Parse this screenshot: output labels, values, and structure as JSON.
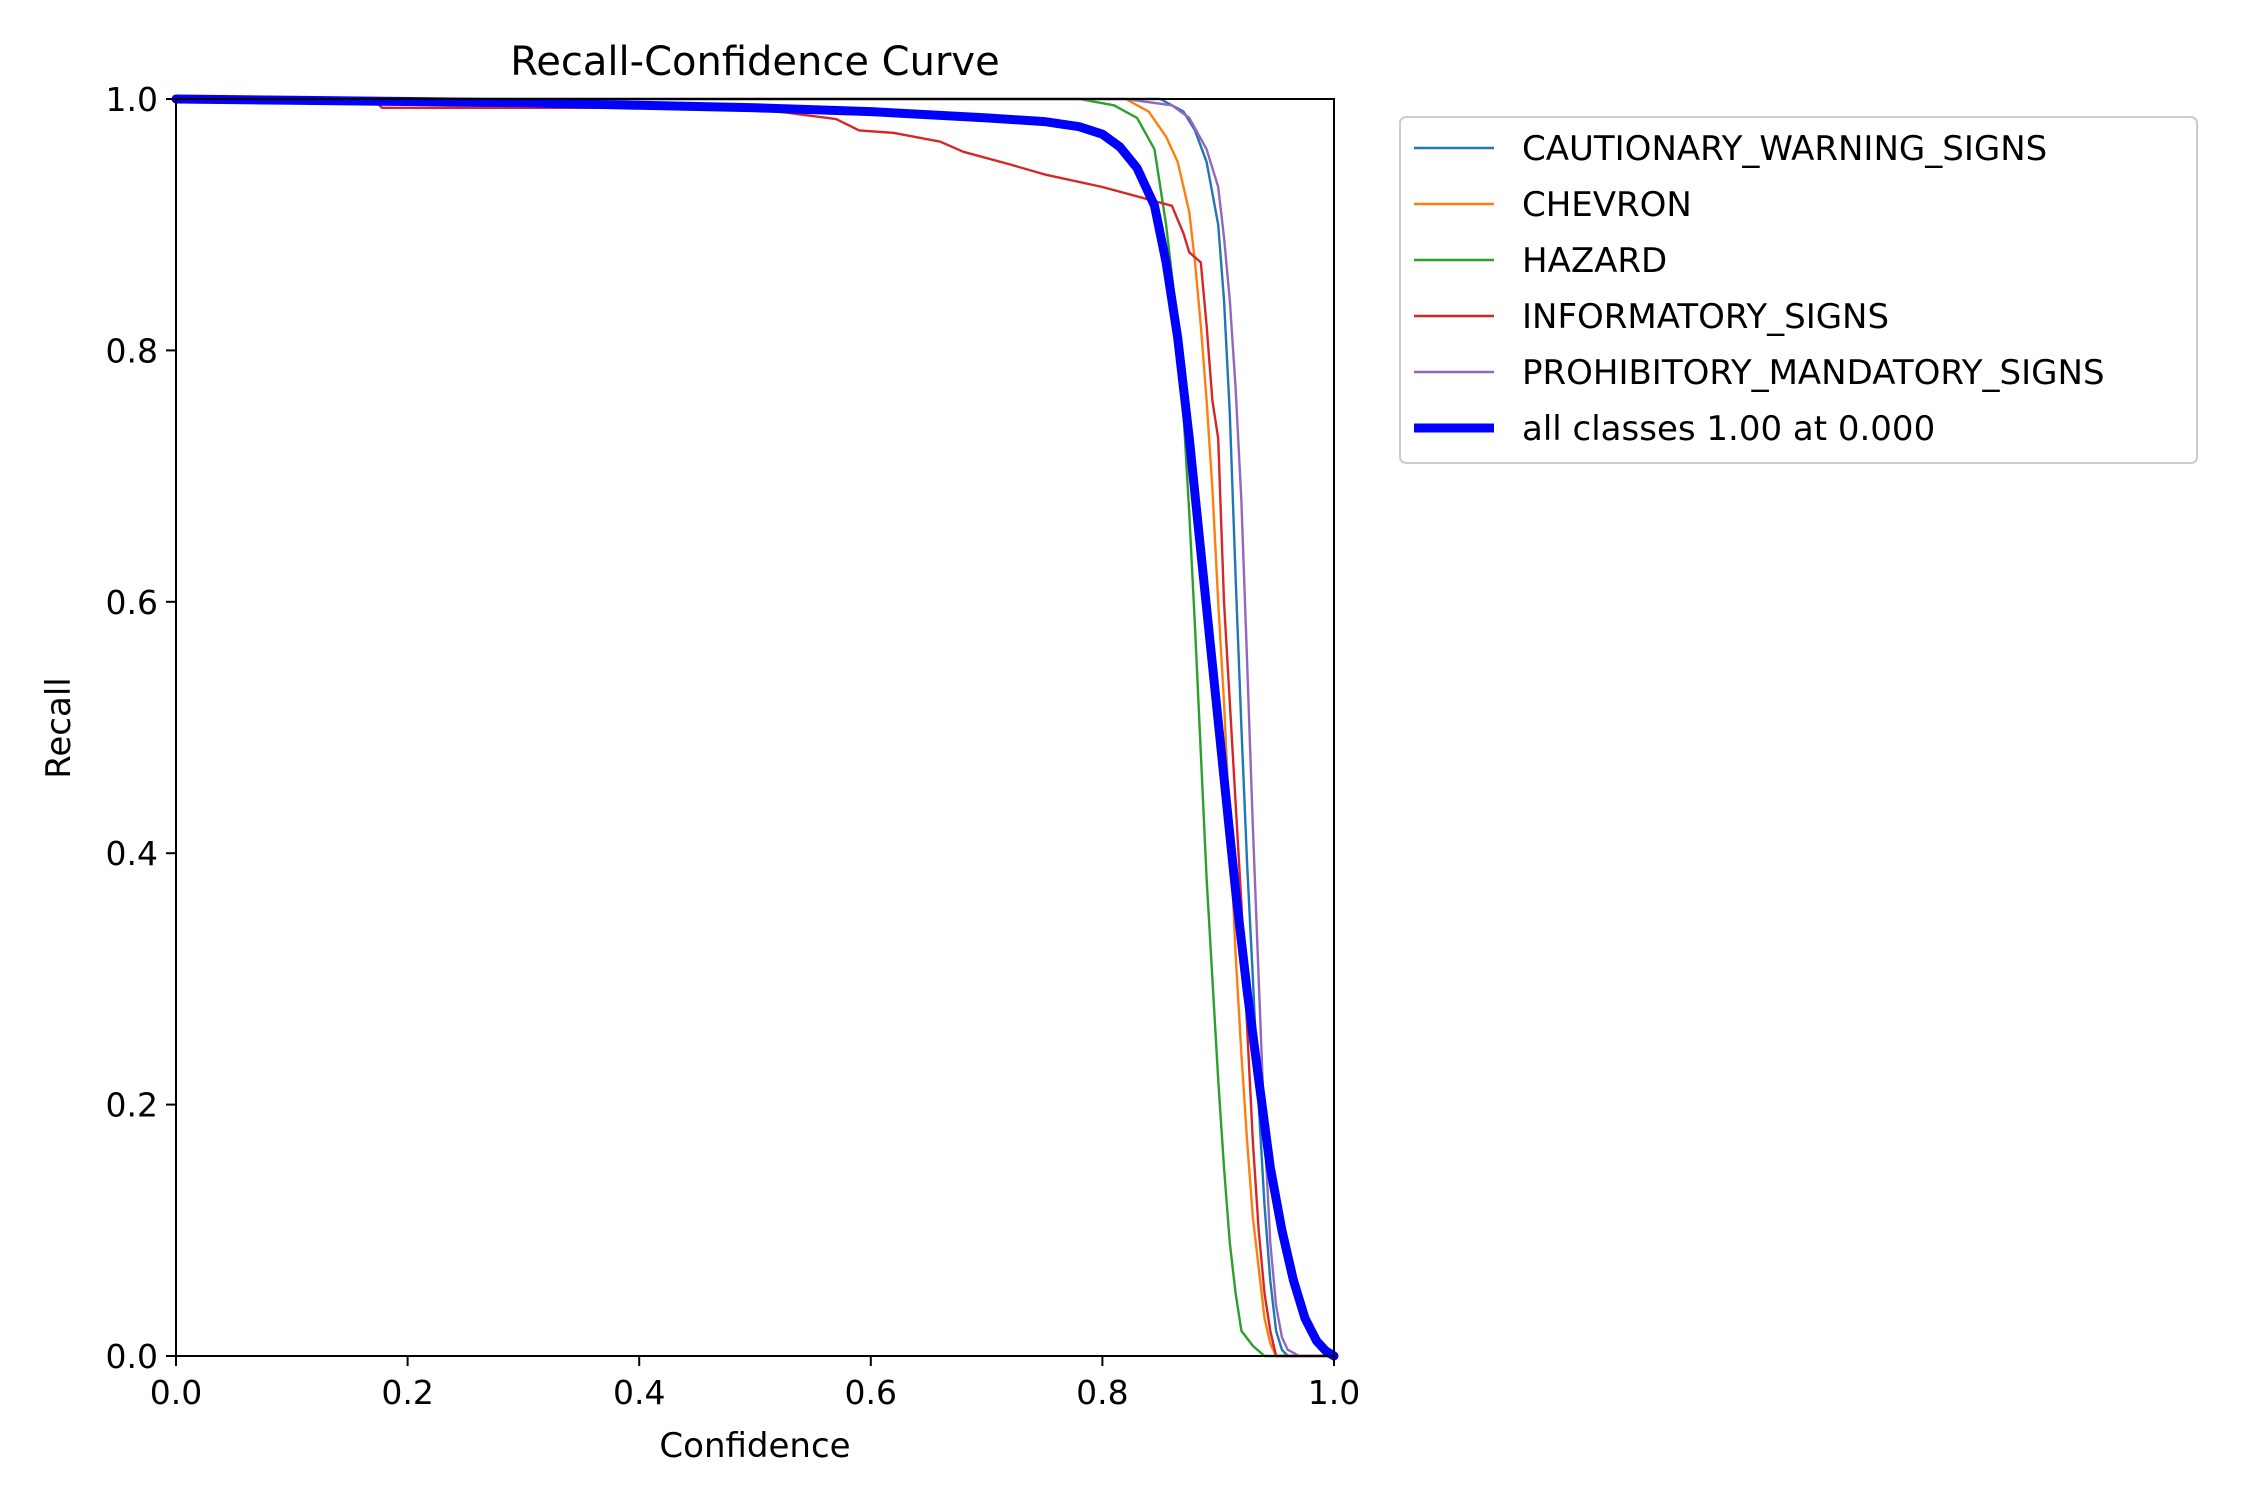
{
  "chart_data": {
    "type": "line",
    "title": "Recall-Confidence Curve",
    "xlabel": "Confidence",
    "ylabel": "Recall",
    "xlim": [
      0.0,
      1.0
    ],
    "ylim": [
      0.0,
      1.0
    ],
    "xticks": [
      "0.0",
      "0.2",
      "0.4",
      "0.6",
      "0.8",
      "1.0"
    ],
    "yticks": [
      "0.0",
      "0.2",
      "0.4",
      "0.6",
      "0.8",
      "1.0"
    ],
    "grid": false,
    "legend_position": "outside-right",
    "series": [
      {
        "name": "CAUTIONARY_WARNING_SIGNS",
        "color": "#1f77b4",
        "emphasis": false,
        "points": [
          [
            0.0,
            1.0
          ],
          [
            0.8,
            1.0
          ],
          [
            0.85,
            1.0
          ],
          [
            0.87,
            0.99
          ],
          [
            0.88,
            0.975
          ],
          [
            0.89,
            0.95
          ],
          [
            0.9,
            0.9
          ],
          [
            0.905,
            0.84
          ],
          [
            0.91,
            0.75
          ],
          [
            0.915,
            0.62
          ],
          [
            0.92,
            0.5
          ],
          [
            0.925,
            0.39
          ],
          [
            0.93,
            0.3
          ],
          [
            0.935,
            0.2
          ],
          [
            0.94,
            0.12
          ],
          [
            0.945,
            0.06
          ],
          [
            0.95,
            0.02
          ],
          [
            0.955,
            0.005
          ],
          [
            0.96,
            0.0
          ],
          [
            1.0,
            0.0
          ]
        ]
      },
      {
        "name": "CHEVRON",
        "color": "#ff7f0e",
        "emphasis": false,
        "points": [
          [
            0.0,
            1.0
          ],
          [
            0.82,
            1.0
          ],
          [
            0.84,
            0.99
          ],
          [
            0.855,
            0.97
          ],
          [
            0.865,
            0.95
          ],
          [
            0.875,
            0.91
          ],
          [
            0.88,
            0.87
          ],
          [
            0.885,
            0.82
          ],
          [
            0.89,
            0.76
          ],
          [
            0.895,
            0.69
          ],
          [
            0.9,
            0.6
          ],
          [
            0.905,
            0.52
          ],
          [
            0.91,
            0.42
          ],
          [
            0.915,
            0.32
          ],
          [
            0.92,
            0.24
          ],
          [
            0.925,
            0.17
          ],
          [
            0.93,
            0.11
          ],
          [
            0.935,
            0.07
          ],
          [
            0.94,
            0.03
          ],
          [
            0.945,
            0.01
          ],
          [
            0.95,
            0.0
          ],
          [
            1.0,
            0.0
          ]
        ]
      },
      {
        "name": "HAZARD",
        "color": "#2ca02c",
        "emphasis": false,
        "points": [
          [
            0.0,
            1.0
          ],
          [
            0.78,
            1.0
          ],
          [
            0.81,
            0.995
          ],
          [
            0.83,
            0.985
          ],
          [
            0.845,
            0.96
          ],
          [
            0.855,
            0.9
          ],
          [
            0.865,
            0.82
          ],
          [
            0.87,
            0.75
          ],
          [
            0.875,
            0.67
          ],
          [
            0.88,
            0.58
          ],
          [
            0.885,
            0.48
          ],
          [
            0.89,
            0.38
          ],
          [
            0.895,
            0.3
          ],
          [
            0.9,
            0.22
          ],
          [
            0.905,
            0.15
          ],
          [
            0.91,
            0.09
          ],
          [
            0.915,
            0.05
          ],
          [
            0.92,
            0.02
          ],
          [
            0.93,
            0.008
          ],
          [
            0.94,
            0.0
          ],
          [
            1.0,
            0.0
          ]
        ]
      },
      {
        "name": "INFORMATORY_SIGNS",
        "color": "#d62728",
        "emphasis": false,
        "points": [
          [
            0.0,
            1.0
          ],
          [
            0.17,
            1.0
          ],
          [
            0.178,
            0.993
          ],
          [
            0.35,
            0.993
          ],
          [
            0.5,
            0.993
          ],
          [
            0.52,
            0.99
          ],
          [
            0.57,
            0.984
          ],
          [
            0.59,
            0.975
          ],
          [
            0.62,
            0.973
          ],
          [
            0.66,
            0.966
          ],
          [
            0.68,
            0.958
          ],
          [
            0.72,
            0.948
          ],
          [
            0.75,
            0.94
          ],
          [
            0.8,
            0.93
          ],
          [
            0.86,
            0.915
          ],
          [
            0.87,
            0.893
          ],
          [
            0.875,
            0.878
          ],
          [
            0.885,
            0.87
          ],
          [
            0.89,
            0.82
          ],
          [
            0.895,
            0.76
          ],
          [
            0.9,
            0.73
          ],
          [
            0.905,
            0.6
          ],
          [
            0.91,
            0.52
          ],
          [
            0.915,
            0.44
          ],
          [
            0.92,
            0.36
          ],
          [
            0.925,
            0.26
          ],
          [
            0.93,
            0.17
          ],
          [
            0.935,
            0.1
          ],
          [
            0.94,
            0.05
          ],
          [
            0.945,
            0.02
          ],
          [
            0.95,
            0.0
          ],
          [
            1.0,
            0.0
          ]
        ]
      },
      {
        "name": "PROHIBITORY_MANDATORY_SIGNS",
        "color": "#9467bd",
        "emphasis": false,
        "points": [
          [
            0.0,
            1.0
          ],
          [
            0.82,
            1.0
          ],
          [
            0.86,
            0.995
          ],
          [
            0.875,
            0.985
          ],
          [
            0.89,
            0.96
          ],
          [
            0.9,
            0.93
          ],
          [
            0.905,
            0.89
          ],
          [
            0.91,
            0.84
          ],
          [
            0.915,
            0.77
          ],
          [
            0.92,
            0.68
          ],
          [
            0.925,
            0.55
          ],
          [
            0.93,
            0.42
          ],
          [
            0.935,
            0.3
          ],
          [
            0.94,
            0.18
          ],
          [
            0.945,
            0.09
          ],
          [
            0.95,
            0.04
          ],
          [
            0.955,
            0.015
          ],
          [
            0.96,
            0.005
          ],
          [
            0.97,
            0.0
          ],
          [
            1.0,
            0.0
          ]
        ]
      },
      {
        "name": "all classes 1.00 at 0.000",
        "color": "#0000ff",
        "emphasis": true,
        "points": [
          [
            0.0,
            1.0
          ],
          [
            0.1,
            0.999
          ],
          [
            0.2,
            0.998
          ],
          [
            0.3,
            0.997
          ],
          [
            0.4,
            0.995
          ],
          [
            0.5,
            0.993
          ],
          [
            0.6,
            0.99
          ],
          [
            0.7,
            0.985
          ],
          [
            0.75,
            0.982
          ],
          [
            0.78,
            0.978
          ],
          [
            0.8,
            0.972
          ],
          [
            0.815,
            0.962
          ],
          [
            0.83,
            0.945
          ],
          [
            0.845,
            0.915
          ],
          [
            0.855,
            0.87
          ],
          [
            0.865,
            0.81
          ],
          [
            0.875,
            0.73
          ],
          [
            0.885,
            0.64
          ],
          [
            0.895,
            0.55
          ],
          [
            0.905,
            0.46
          ],
          [
            0.915,
            0.37
          ],
          [
            0.925,
            0.29
          ],
          [
            0.935,
            0.22
          ],
          [
            0.945,
            0.15
          ],
          [
            0.955,
            0.1
          ],
          [
            0.965,
            0.06
          ],
          [
            0.975,
            0.03
          ],
          [
            0.985,
            0.012
          ],
          [
            0.993,
            0.004
          ],
          [
            1.0,
            0.0
          ]
        ]
      }
    ]
  }
}
